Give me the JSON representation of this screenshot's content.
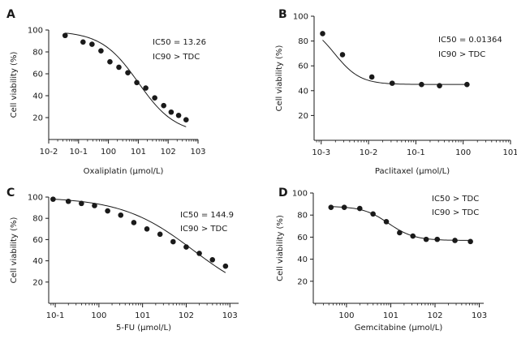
{
  "figure": {
    "background": "#ffffff",
    "ink": "#1a1a1a"
  },
  "chart_data": [
    {
      "panel": "A",
      "type": "scatter",
      "fit": "sigmoid",
      "xlabel": "Oxaliplatin (µmol/L)",
      "ylabel": "Cell viability (%)",
      "xscale": "log",
      "xlim": [
        -2,
        3
      ],
      "ylim": [
        0,
        100
      ],
      "x_ticks": [
        -2,
        -1,
        0,
        1,
        2,
        3
      ],
      "x_tick_labels": [
        "10-2",
        "10-1",
        "100",
        "101",
        "102",
        "103"
      ],
      "y_ticks": [
        20,
        40,
        60,
        80,
        100
      ],
      "y_tick_labels": [
        "20",
        "40",
        "60",
        "80",
        "100"
      ],
      "annotations": [
        "IC50 = 13.26",
        "IC90 > TDC"
      ],
      "points": [
        {
          "log10_x": -1.45,
          "y": 95
        },
        {
          "log10_x": -0.85,
          "y": 89
        },
        {
          "log10_x": -0.55,
          "y": 87
        },
        {
          "log10_x": -0.25,
          "y": 81
        },
        {
          "log10_x": 0.05,
          "y": 71
        },
        {
          "log10_x": 0.35,
          "y": 66
        },
        {
          "log10_x": 0.65,
          "y": 61
        },
        {
          "log10_x": 0.95,
          "y": 52
        },
        {
          "log10_x": 1.25,
          "y": 47
        },
        {
          "log10_x": 1.55,
          "y": 38
        },
        {
          "log10_x": 1.85,
          "y": 31
        },
        {
          "log10_x": 2.1,
          "y": 25
        },
        {
          "log10_x": 2.35,
          "y": 22
        },
        {
          "log10_x": 2.6,
          "y": 18
        }
      ],
      "fit_params": {
        "top": 99,
        "bottom": 5,
        "log_ec50": 1.0,
        "hill": 0.7
      }
    },
    {
      "panel": "B",
      "type": "scatter",
      "fit": "sigmoid",
      "xlabel": "Paclitaxel (µmol/L)",
      "ylabel": "Cell viability (%)",
      "xscale": "log",
      "xlim": [
        -3.15,
        1
      ],
      "ylim": [
        0,
        100
      ],
      "x_ticks": [
        -3,
        -2,
        -1,
        0,
        1
      ],
      "x_tick_labels": [
        "10-3",
        "10-2",
        "10-1",
        "100",
        "101"
      ],
      "y_ticks": [
        20,
        40,
        60,
        80,
        100
      ],
      "y_tick_labels": [
        "20",
        "40",
        "60",
        "80",
        "100"
      ],
      "annotations": [
        "IC50 = 0.01364",
        "IC90 > TDC"
      ],
      "points": [
        {
          "log10_x": -2.97,
          "y": 86
        },
        {
          "log10_x": -2.55,
          "y": 69
        },
        {
          "log10_x": -1.93,
          "y": 51
        },
        {
          "log10_x": -1.5,
          "y": 46
        },
        {
          "log10_x": -0.88,
          "y": 45
        },
        {
          "log10_x": -0.5,
          "y": 44
        },
        {
          "log10_x": 0.08,
          "y": 45
        }
      ],
      "fit_params": {
        "top": 95,
        "bottom": 45,
        "log_ec50": -2.72,
        "hill": 1.6
      }
    },
    {
      "panel": "C",
      "type": "scatter",
      "fit": "sigmoid",
      "xlabel": "5-FU (µmol/L)",
      "ylabel": "Cell viability (%)",
      "xscale": "log",
      "xlim": [
        -1.15,
        3.2
      ],
      "ylim": [
        0,
        100
      ],
      "x_ticks": [
        -1,
        0,
        1,
        2,
        3
      ],
      "x_tick_labels": [
        "10-1",
        "100",
        "101",
        "102",
        "103"
      ],
      "y_ticks": [
        20,
        40,
        60,
        80,
        100
      ],
      "y_tick_labels": [
        "20",
        "40",
        "60",
        "80",
        "100"
      ],
      "annotations": [
        "IC50 = 144.9",
        "IC90 > TDC"
      ],
      "points": [
        {
          "log10_x": -1.05,
          "y": 98
        },
        {
          "log10_x": -0.7,
          "y": 96
        },
        {
          "log10_x": -0.4,
          "y": 94
        },
        {
          "log10_x": -0.1,
          "y": 92
        },
        {
          "log10_x": 0.2,
          "y": 87
        },
        {
          "log10_x": 0.5,
          "y": 83
        },
        {
          "log10_x": 0.8,
          "y": 76
        },
        {
          "log10_x": 1.1,
          "y": 70
        },
        {
          "log10_x": 1.4,
          "y": 65
        },
        {
          "log10_x": 1.7,
          "y": 58
        },
        {
          "log10_x": 2.0,
          "y": 53
        },
        {
          "log10_x": 2.3,
          "y": 47
        },
        {
          "log10_x": 2.6,
          "y": 41
        },
        {
          "log10_x": 2.9,
          "y": 35
        }
      ],
      "fit_params": {
        "top": 100,
        "bottom": 0,
        "log_ec50": 2.16,
        "hill": 0.53
      }
    },
    {
      "panel": "D",
      "type": "scatter",
      "fit": "sigmoid",
      "xlabel": "Gemcitabine (µmol/L)",
      "ylabel": "Cell viability (%)",
      "xscale": "log",
      "xlim": [
        -0.75,
        3.1
      ],
      "ylim": [
        0,
        100
      ],
      "x_ticks": [
        0,
        1,
        2,
        3
      ],
      "x_tick_labels": [
        "100",
        "101",
        "102",
        "103"
      ],
      "y_ticks": [
        20,
        40,
        60,
        80,
        100
      ],
      "y_tick_labels": [
        "20",
        "40",
        "60",
        "80",
        "100"
      ],
      "annotations": [
        "IC50 > TDC",
        "IC90 > TDC"
      ],
      "points": [
        {
          "log10_x": -0.35,
          "y": 87
        },
        {
          "log10_x": -0.05,
          "y": 87
        },
        {
          "log10_x": 0.3,
          "y": 86
        },
        {
          "log10_x": 0.6,
          "y": 81
        },
        {
          "log10_x": 0.9,
          "y": 74
        },
        {
          "log10_x": 1.2,
          "y": 64
        },
        {
          "log10_x": 1.5,
          "y": 61
        },
        {
          "log10_x": 1.8,
          "y": 58
        },
        {
          "log10_x": 2.05,
          "y": 58
        },
        {
          "log10_x": 2.45,
          "y": 57
        },
        {
          "log10_x": 2.8,
          "y": 56
        }
      ],
      "fit_params": {
        "top": 88,
        "bottom": 57,
        "log_ec50": 0.95,
        "hill": 1.5
      }
    }
  ]
}
